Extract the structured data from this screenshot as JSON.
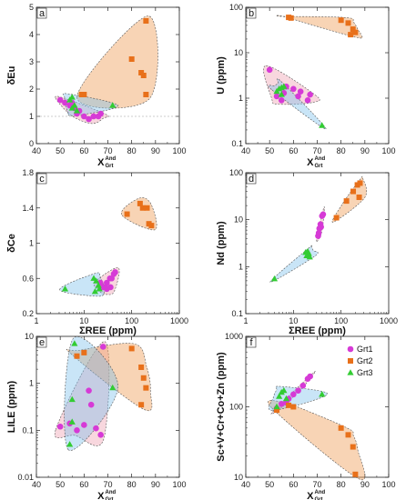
{
  "legend": {
    "entries": [
      {
        "name": "Grt1",
        "color": "#d63ad6",
        "marker": "circle"
      },
      {
        "name": "Grt2",
        "color": "#e8701a",
        "marker": "square"
      },
      {
        "name": "Grt3",
        "color": "#33cc33",
        "marker": "triangle"
      }
    ],
    "placement": "panel-f top-right"
  },
  "chart_data": [
    {
      "type": "scatter",
      "panel_label": "a",
      "xlabel_main": "X",
      "xlabel_sup": "And",
      "xlabel_sub": "Grt",
      "ylabel": "δEu",
      "xlim": [
        40,
        100
      ],
      "ylim": [
        0,
        5
      ],
      "yscale": "linear",
      "xticks": [
        "40",
        "50",
        "60",
        "70",
        "80",
        "90",
        "100"
      ],
      "yticks": [
        "0",
        "1",
        "2",
        "3",
        "4",
        "5"
      ],
      "reference_line_y": 1,
      "series": [
        {
          "name": "Grt1",
          "points": [
            [
              50,
              1.6
            ],
            [
              52,
              1.5
            ],
            [
              54,
              1.4
            ],
            [
              56,
              1.3
            ],
            [
              57,
              1.1
            ],
            [
              60,
              1.0
            ],
            [
              62,
              0.9
            ],
            [
              64,
              1.0
            ],
            [
              66,
              1.0
            ],
            [
              67,
              1.1
            ],
            [
              58,
              1.2
            ],
            [
              55,
              1.5
            ]
          ]
        },
        {
          "name": "Grt2",
          "points": [
            [
              59,
              1.8
            ],
            [
              60,
              1.8
            ],
            [
              80,
              3.1
            ],
            [
              84,
              2.6
            ],
            [
              85,
              2.5
            ],
            [
              86,
              1.8
            ],
            [
              86,
              4.5
            ]
          ]
        },
        {
          "name": "Grt3",
          "points": [
            [
              54,
              1.6
            ],
            [
              55,
              1.7
            ],
            [
              56,
              1.4
            ],
            [
              55,
              1.3
            ],
            [
              57,
              1.2
            ],
            [
              72,
              1.4
            ]
          ]
        }
      ]
    },
    {
      "type": "scatter",
      "panel_label": "b",
      "xlabel_main": "X",
      "xlabel_sup": "And",
      "xlabel_sub": "Grt",
      "ylabel": "U (ppm)",
      "xlim": [
        40,
        100
      ],
      "ylim": [
        0.1,
        100
      ],
      "yscale": "log",
      "xticks": [
        "40",
        "50",
        "60",
        "70",
        "80",
        "90",
        "100"
      ],
      "yticks": [
        "0.1",
        "1",
        "10",
        "100"
      ],
      "series": [
        {
          "name": "Grt1",
          "points": [
            [
              50,
              4.2
            ],
            [
              53,
              1.1
            ],
            [
              55,
              0.9
            ],
            [
              56,
              1.3
            ],
            [
              57,
              1.8
            ],
            [
              60,
              1.6
            ],
            [
              63,
              1.4
            ],
            [
              66,
              0.9
            ],
            [
              67,
              1.2
            ],
            [
              62,
              1.1
            ]
          ]
        },
        {
          "name": "Grt2",
          "points": [
            [
              58,
              60
            ],
            [
              59,
              58
            ],
            [
              80,
              52
            ],
            [
              83,
              45
            ],
            [
              84,
              25
            ],
            [
              85,
              33
            ],
            [
              86,
              28
            ]
          ]
        },
        {
          "name": "Grt3",
          "points": [
            [
              53,
              1.4
            ],
            [
              54,
              1.6
            ],
            [
              55,
              1.7
            ],
            [
              56,
              1.8
            ],
            [
              55,
              1.2
            ],
            [
              72,
              0.25
            ]
          ]
        }
      ]
    },
    {
      "type": "scatter",
      "panel_label": "c",
      "xlabel_main": "ΣREE (ppm)",
      "ylabel": "δCe",
      "xlim": [
        1,
        1000
      ],
      "xscale": "log",
      "ylim": [
        0.2,
        1.8
      ],
      "yscale": "linear",
      "xticks": [
        "1",
        "10",
        "100",
        "1000"
      ],
      "yticks": [
        "0.2",
        "0.6",
        "1",
        "1.4",
        "1.8"
      ],
      "series": [
        {
          "name": "Grt1",
          "points": [
            [
              22,
              0.55
            ],
            [
              25,
              0.5
            ],
            [
              28,
              0.5
            ],
            [
              30,
              0.55
            ],
            [
              35,
              0.6
            ],
            [
              38,
              0.6
            ],
            [
              42,
              0.65
            ],
            [
              45,
              0.67
            ],
            [
              30,
              0.48
            ],
            [
              36,
              0.5
            ]
          ]
        },
        {
          "name": "Grt2",
          "points": [
            [
              80,
              1.33
            ],
            [
              150,
              1.45
            ],
            [
              170,
              1.4
            ],
            [
              210,
              1.4
            ],
            [
              230,
              1.22
            ],
            [
              260,
              1.2
            ]
          ]
        },
        {
          "name": "Grt3",
          "points": [
            [
              4,
              0.48
            ],
            [
              16,
              0.6
            ],
            [
              18,
              0.57
            ],
            [
              20,
              0.52
            ],
            [
              17,
              0.45
            ],
            [
              21,
              0.48
            ]
          ]
        }
      ]
    },
    {
      "type": "scatter",
      "panel_label": "d",
      "xlabel_main": "ΣREE (ppm)",
      "ylabel": "Nd (ppm)",
      "xlim": [
        1,
        1000
      ],
      "xscale": "log",
      "ylim": [
        0.1,
        100
      ],
      "yscale": "log",
      "xticks": [
        "1",
        "10",
        "100",
        "1000"
      ],
      "yticks": [
        "0.1",
        "1",
        "10",
        "100"
      ],
      "series": [
        {
          "name": "Grt1",
          "points": [
            [
              33,
              4.5
            ],
            [
              35,
              6.5
            ],
            [
              37,
              8
            ],
            [
              40,
              12
            ],
            [
              42,
              13
            ],
            [
              38,
              7
            ],
            [
              34,
              5.2
            ]
          ]
        },
        {
          "name": "Grt2",
          "points": [
            [
              80,
              11
            ],
            [
              130,
              25
            ],
            [
              180,
              40
            ],
            [
              220,
              55
            ],
            [
              250,
              60
            ],
            [
              240,
              30
            ]
          ]
        },
        {
          "name": "Grt3",
          "points": [
            [
              4,
              0.55
            ],
            [
              18,
              2
            ],
            [
              19,
              1.7
            ],
            [
              20,
              2.1
            ],
            [
              21,
              1.9
            ],
            [
              22,
              1.6
            ]
          ]
        }
      ]
    },
    {
      "type": "scatter",
      "panel_label": "e",
      "xlabel_main": "X",
      "xlabel_sup": "And",
      "xlabel_sub": "Grt",
      "ylabel": "LILE (ppm)",
      "xlim": [
        40,
        100
      ],
      "ylim": [
        0.01,
        10
      ],
      "yscale": "log",
      "xticks": [
        "40",
        "50",
        "60",
        "70",
        "80",
        "90",
        "100"
      ],
      "yticks": [
        "0.01",
        "0.1",
        "1",
        "10"
      ],
      "series": [
        {
          "name": "Grt1",
          "points": [
            [
              50,
              0.12
            ],
            [
              54,
              0.14
            ],
            [
              57,
              0.1
            ],
            [
              60,
              0.13
            ],
            [
              62,
              0.7
            ],
            [
              63,
              0.35
            ],
            [
              65,
              0.11
            ],
            [
              67,
              0.08
            ],
            [
              68,
              6
            ]
          ]
        },
        {
          "name": "Grt2",
          "points": [
            [
              57,
              3.8
            ],
            [
              60,
              4.5
            ],
            [
              80,
              5.5
            ],
            [
              84,
              2.2
            ],
            [
              85,
              1.3
            ],
            [
              86,
              0.8
            ],
            [
              84,
              0.35
            ]
          ]
        },
        {
          "name": "Grt3",
          "points": [
            [
              54,
              0.05
            ],
            [
              55,
              0.15
            ],
            [
              55,
              0.45
            ],
            [
              56,
              7
            ],
            [
              72,
              0.8
            ]
          ]
        }
      ]
    },
    {
      "type": "scatter",
      "panel_label": "f",
      "xlabel_main": "X",
      "xlabel_sup": "And",
      "xlabel_sub": "Grt",
      "ylabel": "Sc+V+Cr+Co+Zn (ppm)",
      "xlim": [
        40,
        100
      ],
      "ylim": [
        10,
        1000
      ],
      "yscale": "log",
      "xticks": [
        "40",
        "50",
        "60",
        "70",
        "80",
        "90",
        "100"
      ],
      "yticks": [
        "10",
        "100",
        "1000"
      ],
      "series": [
        {
          "name": "Grt1",
          "points": [
            [
              53,
              95
            ],
            [
              55,
              110
            ],
            [
              58,
              130
            ],
            [
              60,
              150
            ],
            [
              62,
              170
            ],
            [
              64,
              200
            ],
            [
              66,
              250
            ],
            [
              67,
              270
            ],
            [
              57,
              115
            ]
          ]
        },
        {
          "name": "Grt2",
          "points": [
            [
              53,
              90
            ],
            [
              58,
              105
            ],
            [
              60,
              100
            ],
            [
              80,
              50
            ],
            [
              83,
              40
            ],
            [
              85,
              27
            ],
            [
              86,
              11
            ]
          ]
        },
        {
          "name": "Grt3",
          "points": [
            [
              53,
              100
            ],
            [
              54,
              140
            ],
            [
              55,
              160
            ],
            [
              56,
              170
            ],
            [
              57,
              130
            ],
            [
              72,
              150
            ]
          ]
        }
      ]
    }
  ]
}
